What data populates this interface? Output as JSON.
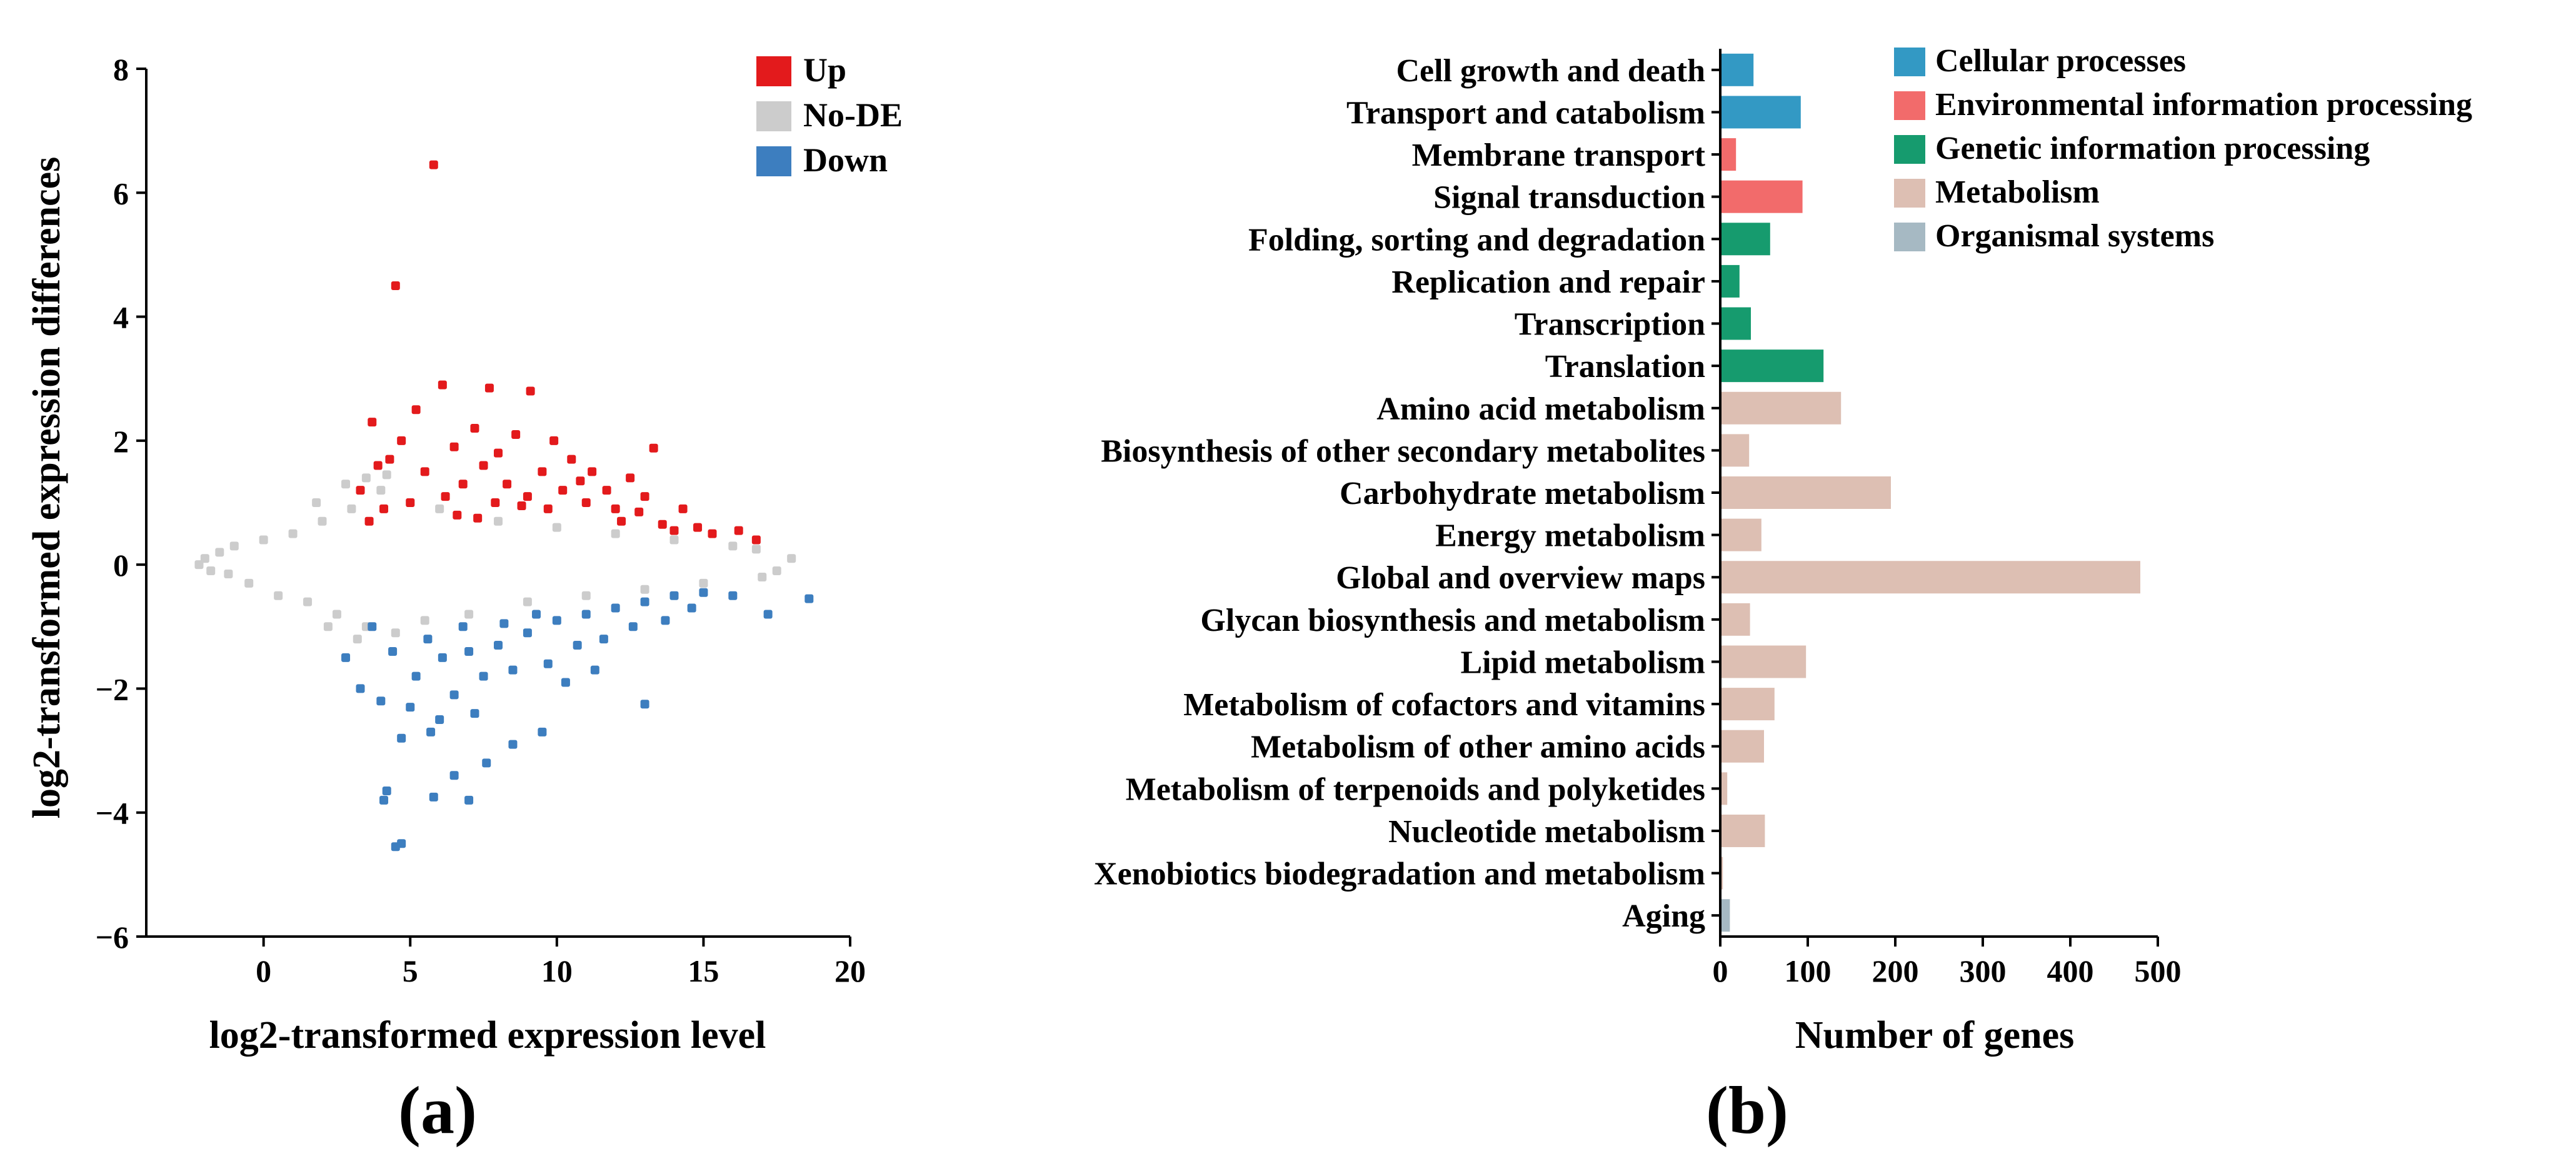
{
  "chart_data": [
    {
      "type": "scatter",
      "panel_label": "(a)",
      "xlabel": "log2-transformed expression level",
      "ylabel": "log2-transformed expression differences",
      "xlim": [
        -4,
        20
      ],
      "ylim": [
        -6,
        8
      ],
      "xticks": [
        0,
        5,
        10,
        15,
        20
      ],
      "yticks": [
        -6,
        -4,
        -2,
        0,
        2,
        4,
        6,
        8
      ],
      "xtick_labels": [
        "0",
        "5",
        "10",
        "15",
        "20"
      ],
      "ytick_labels": [
        "−6",
        "−4",
        "−2",
        "0",
        "2",
        "4",
        "6",
        "8"
      ],
      "legend": [
        {
          "name": "Up",
          "color": "#e31a1c"
        },
        {
          "name": "No-DE",
          "color": "#cccccc"
        },
        {
          "name": "Down",
          "color": "#3d7ebf"
        }
      ],
      "series": [
        {
          "name": "Up",
          "color": "#e31a1c",
          "points": [
            [
              5.8,
              6.45
            ],
            [
              4.5,
              4.5
            ],
            [
              6.1,
              2.9
            ],
            [
              7.7,
              2.85
            ],
            [
              9.1,
              2.8
            ],
            [
              3.7,
              2.3
            ],
            [
              13.3,
              1.88
            ],
            [
              4.3,
              1.7
            ],
            [
              8.6,
              2.1
            ],
            [
              9.9,
              2.0
            ],
            [
              5.2,
              2.5
            ],
            [
              11.2,
              1.5
            ],
            [
              12.5,
              1.4
            ],
            [
              16.2,
              0.55
            ],
            [
              16.8,
              0.4
            ],
            [
              14.3,
              0.9
            ],
            [
              10.5,
              1.7
            ],
            [
              6.5,
              1.9
            ],
            [
              7.2,
              2.2
            ],
            [
              3.3,
              1.2
            ],
            [
              3.9,
              1.6
            ],
            [
              4.7,
              2.0
            ],
            [
              5.5,
              1.5
            ],
            [
              6.8,
              1.3
            ],
            [
              7.5,
              1.6
            ],
            [
              8.3,
              1.3
            ],
            [
              9.5,
              1.5
            ],
            [
              10.2,
              1.2
            ],
            [
              11.0,
              1.0
            ],
            [
              12.0,
              0.9
            ],
            [
              12.8,
              0.85
            ],
            [
              13.6,
              0.65
            ],
            [
              14.8,
              0.6
            ],
            [
              15.3,
              0.5
            ],
            [
              8.0,
              1.8
            ],
            [
              9.0,
              1.1
            ],
            [
              6.2,
              1.1
            ],
            [
              5.0,
              1.0
            ],
            [
              7.9,
              1.0
            ],
            [
              10.8,
              1.35
            ],
            [
              11.7,
              1.2
            ],
            [
              13.0,
              1.1
            ],
            [
              9.7,
              0.9
            ],
            [
              8.8,
              0.95
            ],
            [
              12.2,
              0.7
            ],
            [
              14.0,
              0.55
            ],
            [
              4.1,
              0.9
            ],
            [
              3.6,
              0.7
            ],
            [
              6.6,
              0.8
            ],
            [
              7.3,
              0.75
            ]
          ]
        },
        {
          "name": "Down",
          "color": "#3d7ebf",
          "points": [
            [
              4.5,
              -4.55
            ],
            [
              4.7,
              -4.5
            ],
            [
              4.1,
              -3.8
            ],
            [
              4.2,
              -3.65
            ],
            [
              5.8,
              -3.75
            ],
            [
              7.0,
              -3.8
            ],
            [
              6.5,
              -3.4
            ],
            [
              7.6,
              -3.2
            ],
            [
              8.5,
              -2.9
            ],
            [
              9.5,
              -2.7
            ],
            [
              4.7,
              -2.8
            ],
            [
              5.7,
              -2.7
            ],
            [
              13.0,
              -2.25
            ],
            [
              3.3,
              -2.0
            ],
            [
              2.8,
              -1.5
            ],
            [
              17.2,
              -0.8
            ],
            [
              18.6,
              -0.55
            ],
            [
              16.0,
              -0.5
            ],
            [
              4.0,
              -2.2
            ],
            [
              5.2,
              -1.8
            ],
            [
              6.1,
              -1.5
            ],
            [
              7.0,
              -1.4
            ],
            [
              8.0,
              -1.3
            ],
            [
              9.0,
              -1.1
            ],
            [
              10.0,
              -0.9
            ],
            [
              11.0,
              -0.8
            ],
            [
              12.0,
              -0.7
            ],
            [
              13.0,
              -0.6
            ],
            [
              14.0,
              -0.5
            ],
            [
              15.0,
              -0.45
            ],
            [
              6.5,
              -2.1
            ],
            [
              7.5,
              -1.8
            ],
            [
              8.5,
              -1.7
            ],
            [
              9.7,
              -1.6
            ],
            [
              10.7,
              -1.3
            ],
            [
              11.6,
              -1.2
            ],
            [
              12.6,
              -1.0
            ],
            [
              4.4,
              -1.4
            ],
            [
              5.6,
              -1.2
            ],
            [
              6.8,
              -1.0
            ],
            [
              8.2,
              -0.95
            ],
            [
              9.3,
              -0.8
            ],
            [
              3.7,
              -1.0
            ],
            [
              5.0,
              -2.3
            ],
            [
              6.0,
              -2.5
            ],
            [
              7.2,
              -2.4
            ],
            [
              10.3,
              -1.9
            ],
            [
              11.3,
              -1.7
            ],
            [
              13.7,
              -0.9
            ],
            [
              14.6,
              -0.7
            ]
          ]
        },
        {
          "name": "No-DE",
          "color": "#cccccc",
          "points": [
            [
              -2.2,
              0.0
            ],
            [
              -2.0,
              0.1
            ],
            [
              -1.8,
              -0.1
            ],
            [
              -1.5,
              0.2
            ],
            [
              -1.2,
              -0.15
            ],
            [
              -1.0,
              0.3
            ],
            [
              -0.5,
              -0.3
            ],
            [
              0.0,
              0.4
            ],
            [
              0.5,
              -0.5
            ],
            [
              1.0,
              0.5
            ],
            [
              1.5,
              -0.6
            ],
            [
              2.0,
              0.7
            ],
            [
              2.5,
              -0.8
            ],
            [
              3.0,
              0.9
            ],
            [
              3.5,
              -1.0
            ],
            [
              4.0,
              1.2
            ],
            [
              4.5,
              -1.1
            ],
            [
              5.0,
              1.0
            ],
            [
              5.5,
              -0.9
            ],
            [
              6.0,
              0.9
            ],
            [
              7.0,
              -0.8
            ],
            [
              8.0,
              0.7
            ],
            [
              9.0,
              -0.6
            ],
            [
              10.0,
              0.6
            ],
            [
              11.0,
              -0.5
            ],
            [
              12.0,
              0.5
            ],
            [
              13.0,
              -0.4
            ],
            [
              14.0,
              0.4
            ],
            [
              15.0,
              -0.3
            ],
            [
              16.0,
              0.3
            ],
            [
              17.0,
              -0.2
            ],
            [
              18.0,
              0.1
            ],
            [
              2.8,
              1.3
            ],
            [
              3.5,
              1.4
            ],
            [
              4.2,
              1.45
            ],
            [
              1.8,
              1.0
            ],
            [
              2.2,
              -1.0
            ],
            [
              3.2,
              -1.2
            ],
            [
              16.8,
              0.25
            ],
            [
              17.5,
              -0.1
            ]
          ]
        }
      ]
    },
    {
      "type": "bar",
      "orientation": "horizontal",
      "panel_label": "(b)",
      "xlabel": "Number of genes",
      "xlim": [
        0,
        500
      ],
      "xticks": [
        0,
        100,
        200,
        300,
        400,
        500
      ],
      "xtick_labels": [
        "0",
        "100",
        "200",
        "300",
        "400",
        "500"
      ],
      "legend": [
        {
          "name": "Cellular processes",
          "color": "#3399c4"
        },
        {
          "name": "Environmental information processing",
          "color": "#f26b6b"
        },
        {
          "name": "Genetic information processing",
          "color": "#169b6e"
        },
        {
          "name": "Metabolism",
          "color": "#ddbfb3"
        },
        {
          "name": "Organismal systems",
          "color": "#a6b9c3"
        }
      ],
      "categories": [
        "Cell growth and death",
        "Transport and catabolism",
        "Membrane transport",
        "Signal transduction",
        "Folding, sorting and degradation",
        "Replication and repair",
        "Transcription",
        "Translation",
        "Amino acid metabolism",
        "Biosynthesis of other secondary metabolites",
        "Carbohydrate metabolism",
        "Energy metabolism",
        "Global and overview maps",
        "Glycan biosynthesis and metabolism",
        "Lipid metabolism",
        "Metabolism of cofactors and vitamins",
        "Metabolism of other amino acids",
        "Metabolism of terpenoids and polyketides",
        "Nucleotide metabolism",
        "Xenobiotics biodegradation and metabolism",
        "Aging"
      ],
      "values": [
        38,
        92,
        18,
        94,
        57,
        22,
        35,
        118,
        138,
        33,
        195,
        47,
        480,
        34,
        98,
        62,
        50,
        8,
        51,
        3,
        11
      ],
      "groups": [
        "Cellular processes",
        "Cellular processes",
        "Environmental information processing",
        "Environmental information processing",
        "Genetic information processing",
        "Genetic information processing",
        "Genetic information processing",
        "Genetic information processing",
        "Metabolism",
        "Metabolism",
        "Metabolism",
        "Metabolism",
        "Metabolism",
        "Metabolism",
        "Metabolism",
        "Metabolism",
        "Metabolism",
        "Metabolism",
        "Metabolism",
        "Metabolism",
        "Organismal systems"
      ]
    }
  ]
}
